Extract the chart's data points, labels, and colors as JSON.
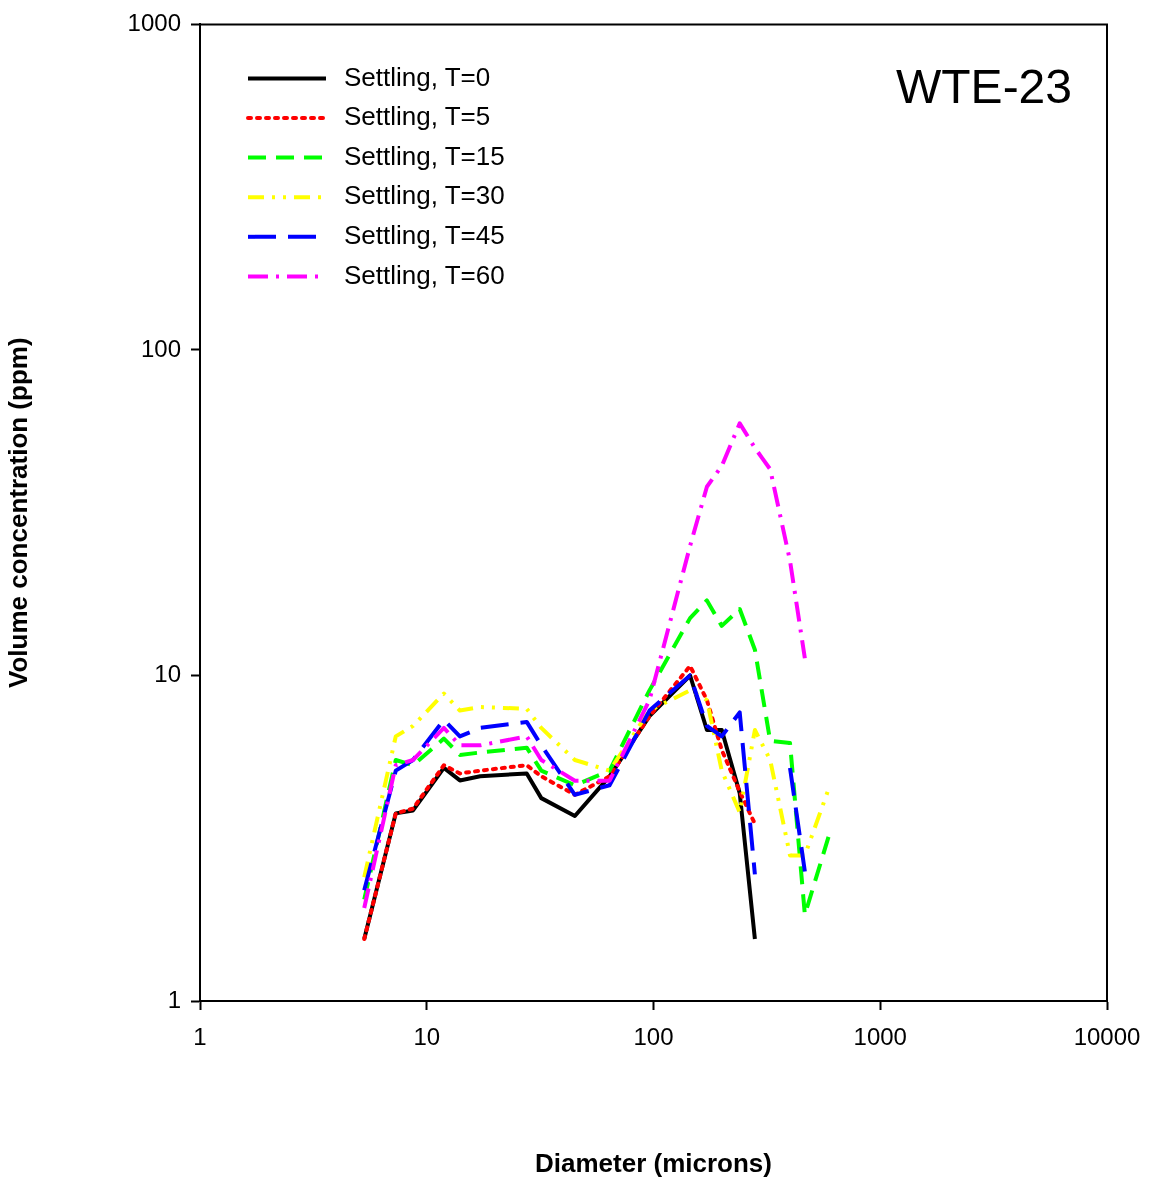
{
  "chart_data": {
    "type": "line",
    "xlabel": "Diameter (microns)",
    "ylabel": "Volume concentration (ppm)",
    "annotations": [
      "WTE-23"
    ],
    "x": [
      5.3,
      7.3,
      8.7,
      11.9,
      14,
      17.2,
      27.6,
      32,
      45,
      64,
      96,
      145,
      172,
      200,
      240,
      280,
      327,
      400,
      465,
      600
    ],
    "log": "xy",
    "xlim": [
      1,
      10000
    ],
    "ylim": [
      1,
      1000
    ],
    "xticks": [
      1,
      10,
      100,
      1000,
      10000
    ],
    "yticks": [
      1,
      10,
      100,
      1000
    ],
    "grid": false,
    "legend": "top left",
    "marker": "none",
    "series": [
      {
        "name": "Settling, T=0",
        "color": "#000000",
        "line_style": "solid",
        "values": [
          1.55,
          3.77,
          3.85,
          5.2,
          4.76,
          4.9,
          5.0,
          4.2,
          3.7,
          4.9,
          7.5,
          10.0,
          6.8,
          6.8,
          4.35,
          1.55,
          null,
          null,
          null,
          null
        ]
      },
      {
        "name": "Settling, T=5",
        "color": "#ff0000",
        "line_style": "dotted",
        "values": [
          1.55,
          3.77,
          3.9,
          5.3,
          5.0,
          5.1,
          5.3,
          4.9,
          4.3,
          4.9,
          7.5,
          10.7,
          8.4,
          5.9,
          4.4,
          3.5,
          null,
          null,
          null,
          null
        ]
      },
      {
        "name": "Settling, T=15",
        "color": "#00ff00",
        "line_style": "dashed",
        "values": [
          2.05,
          5.5,
          5.3,
          6.4,
          5.7,
          5.8,
          6.0,
          5.1,
          4.6,
          5.1,
          9.0,
          15.0,
          17.0,
          14.2,
          16.0,
          12.0,
          6.3,
          6.2,
          1.84,
          3.3
        ]
      },
      {
        "name": "Settling, T=30",
        "color": "#ffff00",
        "line_style": "dashdotdot",
        "values": [
          2.4,
          6.5,
          7.0,
          8.8,
          7.8,
          8.0,
          7.9,
          6.9,
          5.5,
          5.1,
          7.8,
          9.0,
          8.4,
          5.1,
          3.8,
          6.8,
          5.5,
          2.8,
          2.8,
          4.6
        ]
      },
      {
        "name": "Settling, T=45",
        "color": "#0000ff",
        "line_style": "longdash",
        "values": [
          2.19,
          5.1,
          5.5,
          7.3,
          6.5,
          6.9,
          7.2,
          6.1,
          4.3,
          4.6,
          7.8,
          10.0,
          7.0,
          6.5,
          7.7,
          2.45,
          null,
          5.2,
          2.5,
          null
        ]
      },
      {
        "name": "Settling, T=60",
        "color": "#ff00ff",
        "line_style": "dashdot",
        "values": [
          1.93,
          5.3,
          5.5,
          6.9,
          6.1,
          6.1,
          6.5,
          5.5,
          4.75,
          4.75,
          8.4,
          25,
          38,
          44,
          59.5,
          50,
          43,
          22.5,
          11.3,
          null
        ]
      }
    ]
  }
}
